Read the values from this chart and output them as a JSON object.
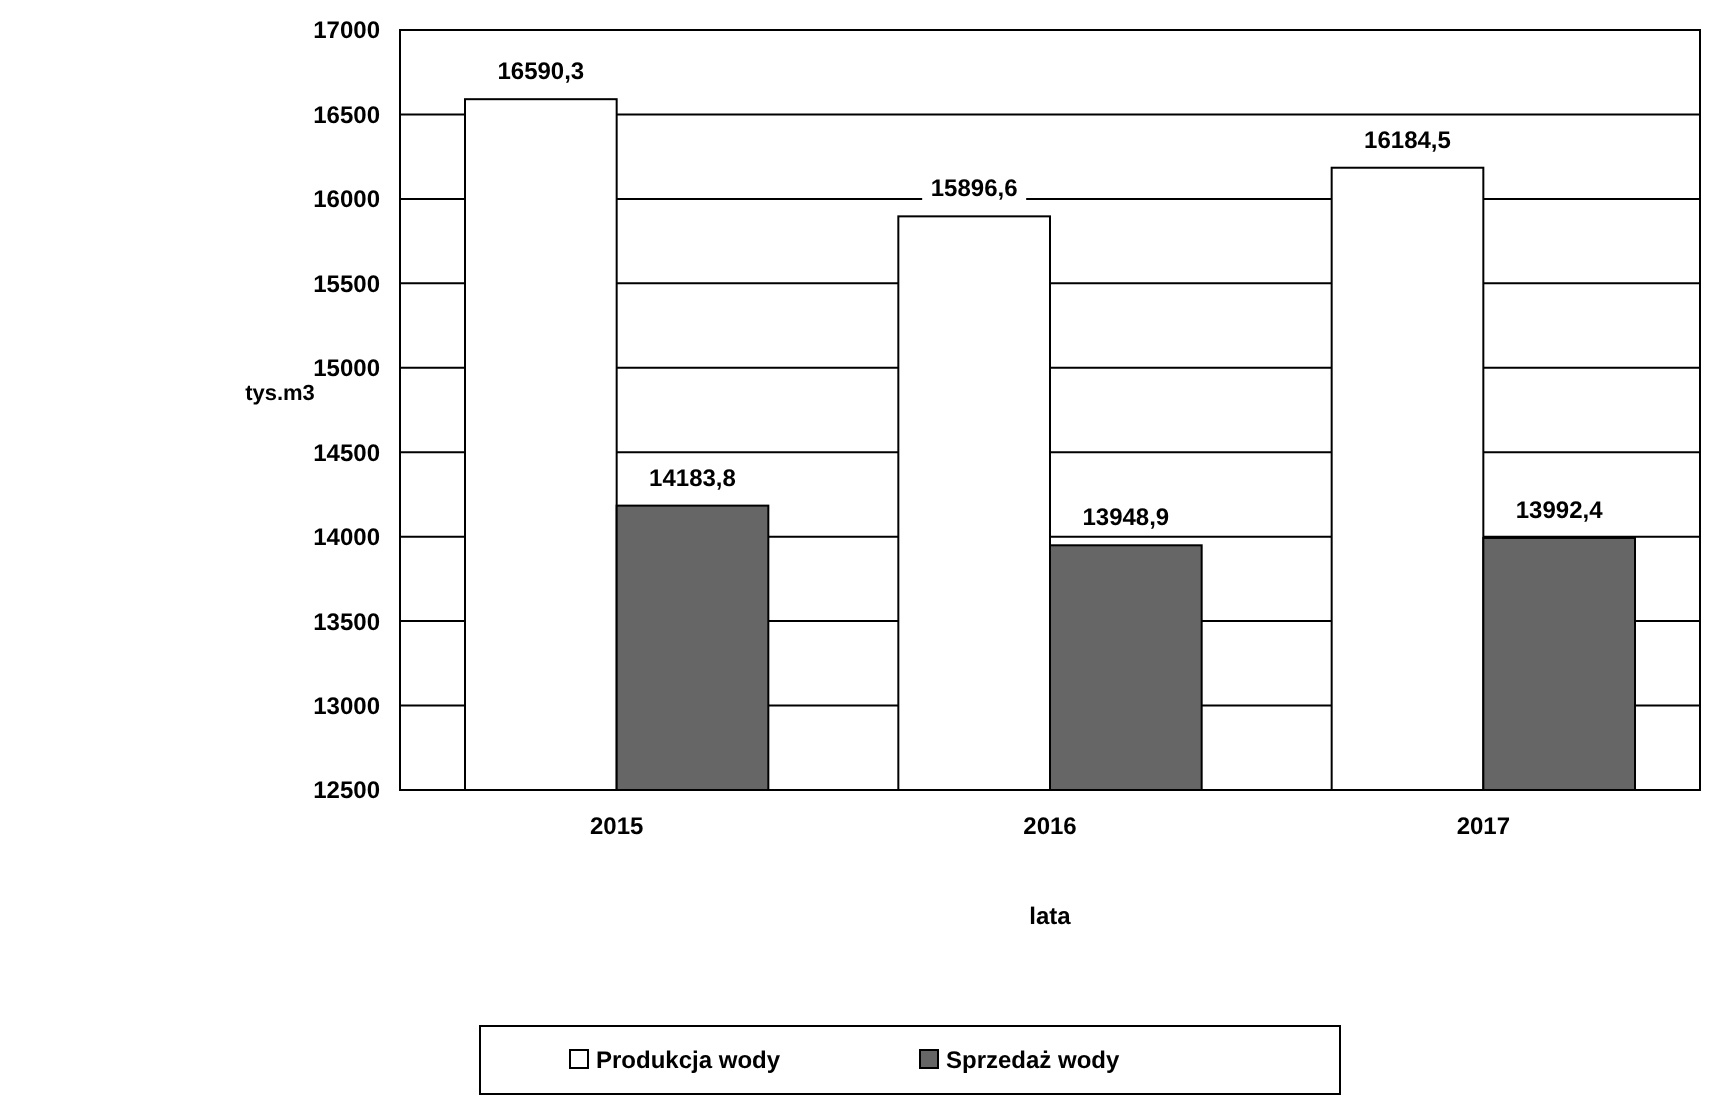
{
  "chart_data": {
    "type": "bar",
    "xlabel": "lata",
    "ylabel": "tys.m3",
    "categories": [
      "2015",
      "2016",
      "2017"
    ],
    "series": [
      {
        "name": "Produkcja wody",
        "color": "#ffffff",
        "values": [
          16590.3,
          15896.6,
          16184.5
        ],
        "value_labels": [
          "16590,3",
          "15896,6",
          "16184,5"
        ]
      },
      {
        "name": "Sprzedaż wody",
        "color": "#666666",
        "values": [
          14183.8,
          13948.9,
          13992.4
        ],
        "value_labels": [
          "14183,8",
          "13948,9",
          "13992,4"
        ]
      }
    ],
    "ylim": [
      12500,
      17000
    ],
    "yticks": [
      12500,
      13000,
      13500,
      14000,
      14500,
      15000,
      15500,
      16000,
      16500,
      17000
    ],
    "grid": "y",
    "legend": "bottom"
  }
}
